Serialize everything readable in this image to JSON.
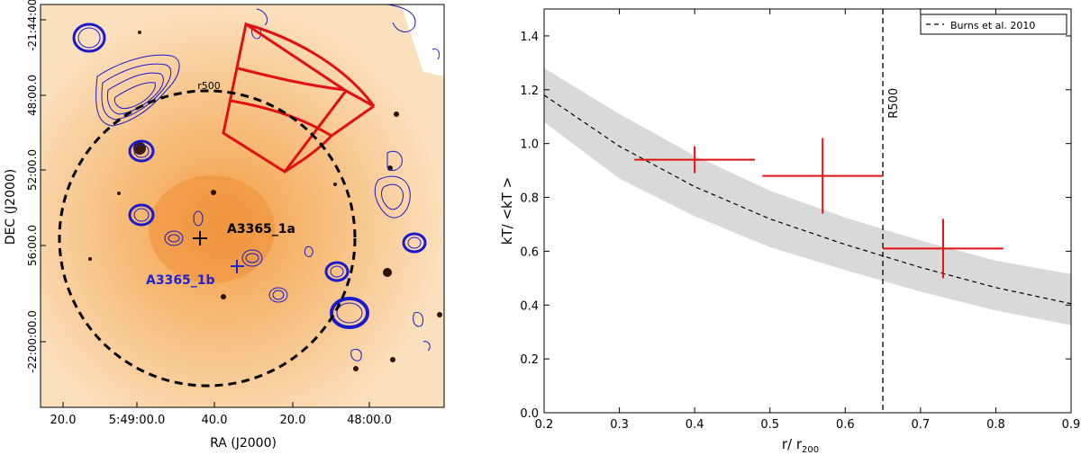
{
  "left_panel": {
    "xlabel": "RA (J2000)",
    "ylabel": "DEC (J2000)",
    "x_ticks": [
      "20.0",
      "5:49:00.0",
      "40.0",
      "20.0",
      "48:00.0"
    ],
    "y_ticks": [
      "-21:44:00.0",
      "48:00.0",
      "52:00.0",
      "56:00.0",
      "-22:00:00.0"
    ],
    "circle_label": "r500",
    "source_a_label": "A3365_1a",
    "source_b_label": "A3365_1b",
    "colors": {
      "image": "#f6b870",
      "contours": "#1a1acc",
      "sectors": "#e01010",
      "source_b": "#2222cc"
    }
  },
  "chart_data": {
    "type": "scatter",
    "title": "",
    "xlabel": "r/ r",
    "xlabel_sub": "200",
    "ylabel": "kT/ <kT >",
    "xlim": [
      0.2,
      0.9
    ],
    "ylim": [
      0.0,
      1.5
    ],
    "x_ticks": [
      "0.2",
      "0.3",
      "0.4",
      "0.5",
      "0.6",
      "0.7",
      "0.8",
      "0.9"
    ],
    "y_ticks": [
      "0.0",
      "0.2",
      "0.4",
      "0.6",
      "0.8",
      "1.0",
      "1.2",
      "1.4"
    ],
    "legend": {
      "label": "Burns et al. 2010",
      "position": "top-right"
    },
    "model_curve": {
      "name": "Burns et al. 2010",
      "x": [
        0.2,
        0.3,
        0.4,
        0.5,
        0.6,
        0.7,
        0.8,
        0.9
      ],
      "y": [
        1.18,
        0.99,
        0.84,
        0.72,
        0.625,
        0.54,
        0.465,
        0.405
      ],
      "band_upper": [
        1.28,
        1.11,
        0.955,
        0.825,
        0.725,
        0.64,
        0.565,
        0.515
      ],
      "band_lower": [
        1.08,
        0.87,
        0.73,
        0.615,
        0.53,
        0.45,
        0.38,
        0.325
      ]
    },
    "points": [
      {
        "x": 0.4,
        "y": 0.94,
        "xerr": [
          0.08,
          0.08
        ],
        "yerr": [
          0.05,
          0.05
        ]
      },
      {
        "x": 0.57,
        "y": 0.88,
        "xerr": [
          0.08,
          0.08
        ],
        "yerr": [
          0.14,
          0.14
        ]
      },
      {
        "x": 0.73,
        "y": 0.61,
        "xerr": [
          0.08,
          0.08
        ],
        "yerr": [
          0.11,
          0.11
        ]
      }
    ],
    "vline": {
      "x": 0.65,
      "label": "R500"
    },
    "colors": {
      "points": "#e01010",
      "band": "#d9d9d9",
      "curve": "#000000"
    }
  }
}
